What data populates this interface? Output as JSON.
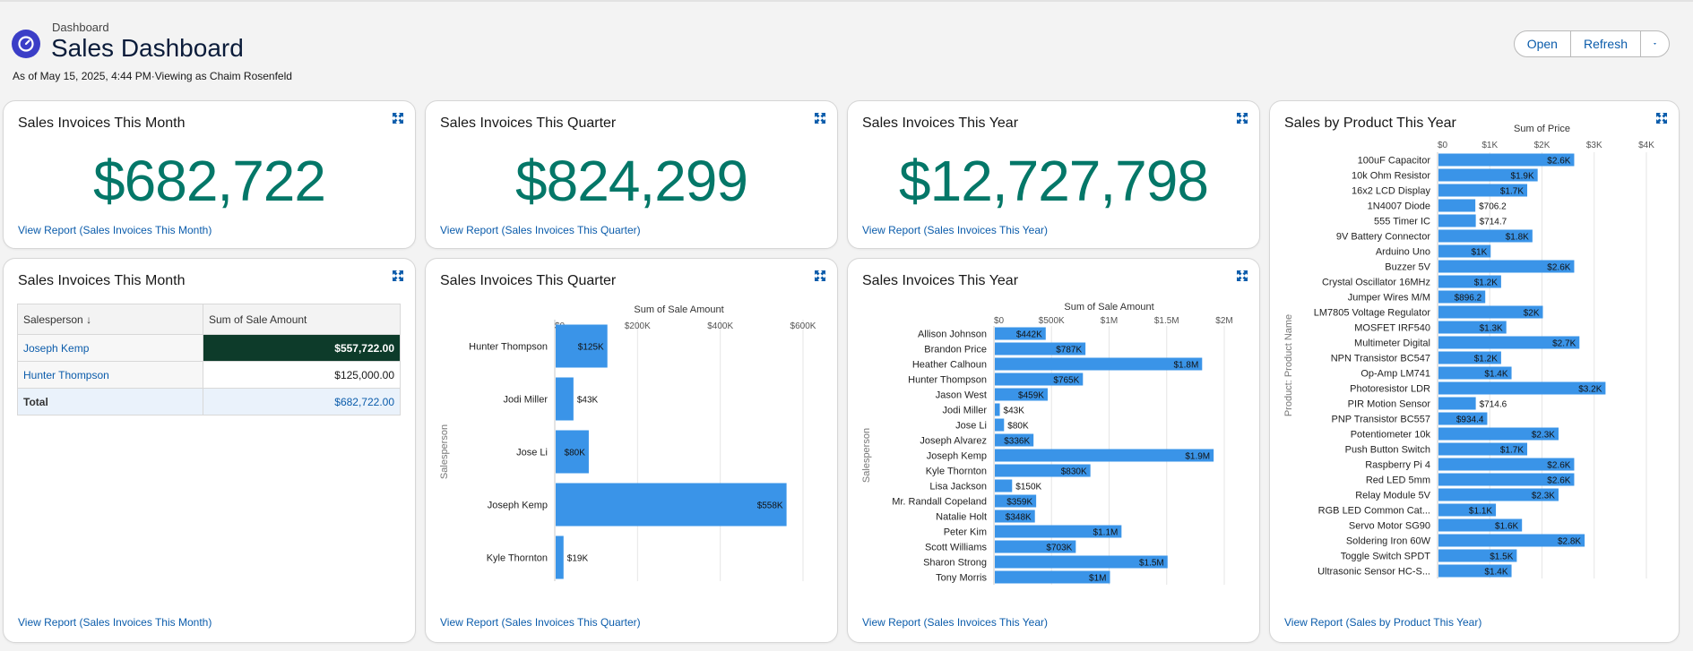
{
  "header": {
    "breadcrumb": "Dashboard",
    "title": "Sales Dashboard",
    "as_of": "As of May 15, 2025, 4:44 PM·Viewing as Chaim Rosenfeld",
    "open_label": "Open",
    "refresh_label": "Refresh"
  },
  "colors": {
    "bar": "#3a94e8",
    "metric": "#047768",
    "link": "#0b5cab",
    "dark_cell": "#0d3b2a"
  },
  "metrics": {
    "month": {
      "title": "Sales Invoices This Month",
      "value": "$682,722",
      "link": "View Report (Sales Invoices This Month)"
    },
    "quarter": {
      "title": "Sales Invoices This Quarter",
      "value": "$824,299",
      "link": "View Report (Sales Invoices This Quarter)"
    },
    "year": {
      "title": "Sales Invoices This Year",
      "value": "$12,727,798",
      "link": "View Report (Sales Invoices This Year)"
    }
  },
  "table_card": {
    "title": "Sales Invoices This Month",
    "col1": "Salesperson",
    "col2": "Sum of Sale Amount",
    "rows": [
      {
        "name": "Joseph Kemp",
        "amount": "$557,722.00"
      },
      {
        "name": "Hunter Thompson",
        "amount": "$125,000.00"
      }
    ],
    "total_label": "Total",
    "total_amount": "$682,722.00",
    "link": "View Report (Sales Invoices This Month)"
  },
  "quarter_chart_card": {
    "title": "Sales Invoices This Quarter",
    "link": "View Report (Sales Invoices This Quarter)"
  },
  "year_chart_card": {
    "title": "Sales Invoices This Year",
    "link": "View Report (Sales Invoices This Year)"
  },
  "product_card": {
    "title": "Sales by Product This Year",
    "link": "View Report (Sales by Product This Year)"
  },
  "chart_data": [
    {
      "id": "quarter",
      "type": "bar",
      "orientation": "horizontal",
      "title": "Sum of Sale Amount",
      "ylabel": "Salesperson",
      "xlim": [
        0,
        600000
      ],
      "ticks": [
        0,
        200000,
        400000,
        600000
      ],
      "tick_labels": [
        "$0",
        "$200K",
        "$400K",
        "$600K"
      ],
      "categories": [
        "Hunter Thompson",
        "Jodi Miller",
        "Jose Li",
        "Joseph Kemp",
        "Kyle Thornton"
      ],
      "values": [
        125000,
        43000,
        80000,
        558000,
        19000
      ],
      "labels": [
        "$125K",
        "$43K",
        "$80K",
        "$558K",
        "$19K"
      ]
    },
    {
      "id": "year",
      "type": "bar",
      "orientation": "horizontal",
      "title": "Sum of Sale Amount",
      "ylabel": "Salesperson",
      "xlim": [
        0,
        2000000
      ],
      "ticks": [
        0,
        500000,
        1000000,
        1500000,
        2000000
      ],
      "tick_labels": [
        "$0",
        "$500K",
        "$1M",
        "$1.5M",
        "$2M"
      ],
      "categories": [
        "Allison Johnson",
        "Brandon Price",
        "Heather Calhoun",
        "Hunter Thompson",
        "Jason West",
        "Jodi Miller",
        "Jose Li",
        "Joseph Alvarez",
        "Joseph Kemp",
        "Kyle Thornton",
        "Lisa Jackson",
        "Mr. Randall Copeland",
        "Natalie Holt",
        "Peter Kim",
        "Scott Williams",
        "Sharon Strong",
        "Tony Morris"
      ],
      "values": [
        442000,
        787000,
        1800000,
        765000,
        459000,
        43000,
        80000,
        336000,
        1900000,
        830000,
        150000,
        359000,
        348000,
        1100000,
        703000,
        1500000,
        1000000
      ],
      "labels": [
        "$442K",
        "$787K",
        "$1.8M",
        "$765K",
        "$459K",
        "$43K",
        "$80K",
        "$336K",
        "$1.9M",
        "$830K",
        "$150K",
        "$359K",
        "$348K",
        "$1.1M",
        "$703K",
        "$1.5M",
        "$1M"
      ]
    },
    {
      "id": "product",
      "type": "bar",
      "orientation": "horizontal",
      "title": "Sum of Price",
      "ylabel": "Product: Product Name",
      "xlim": [
        0,
        4000
      ],
      "ticks": [
        0,
        1000,
        2000,
        3000,
        4000
      ],
      "tick_labels": [
        "$0",
        "$1K",
        "$2K",
        "$3K",
        "$4K"
      ],
      "categories": [
        "100uF Capacitor",
        "10k Ohm Resistor",
        "16x2 LCD Display",
        "1N4007 Diode",
        "555 Timer IC",
        "9V Battery Connector",
        "Arduino Uno",
        "Buzzer 5V",
        "Crystal Oscillator 16MHz",
        "Jumper Wires M/M",
        "LM7805 Voltage Regulator",
        "MOSFET IRF540",
        "Multimeter Digital",
        "NPN Transistor BC547",
        "Op-Amp LM741",
        "Photoresistor LDR",
        "PIR Motion Sensor",
        "PNP Transistor BC557",
        "Potentiometer 10k",
        "Push Button Switch",
        "Raspberry Pi 4",
        "Red LED 5mm",
        "Relay Module 5V",
        "RGB LED Common Cat...",
        "Servo Motor SG90",
        "Soldering Iron 60W",
        "Toggle Switch SPDT",
        "Ultrasonic Sensor HC-S..."
      ],
      "values": [
        2600,
        1900,
        1700,
        706.2,
        714.7,
        1800,
        1000,
        2600,
        1200,
        896.2,
        2000,
        1300,
        2700,
        1200,
        1400,
        3200,
        714.6,
        934.4,
        2300,
        1700,
        2600,
        2600,
        2300,
        1100,
        1600,
        2800,
        1500,
        1400
      ],
      "labels": [
        "$2.6K",
        "$1.9K",
        "$1.7K",
        "$706.2",
        "$714.7",
        "$1.8K",
        "$1K",
        "$2.6K",
        "$1.2K",
        "$896.2",
        "$2K",
        "$1.3K",
        "$2.7K",
        "$1.2K",
        "$1.4K",
        "$3.2K",
        "$714.6",
        "$934.4",
        "$2.3K",
        "$1.7K",
        "$2.6K",
        "$2.6K",
        "$2.3K",
        "$1.1K",
        "$1.6K",
        "$2.8K",
        "$1.5K",
        "$1.4K"
      ]
    }
  ]
}
